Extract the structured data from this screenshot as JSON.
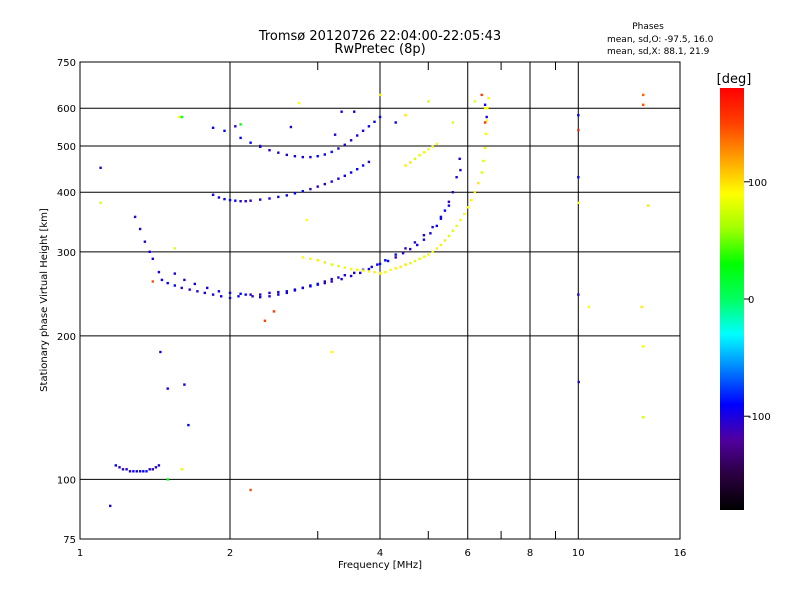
{
  "header": {
    "title": "Tromsø 20120726 22:04:00-22:05:43",
    "subtitle": "RwPretec (8p)"
  },
  "stats": {
    "heading": "Phases",
    "line_o": "mean, sd,O: -97.5, 16.0",
    "line_x": "mean, sd,X:  88.1, 21.9"
  },
  "colorbar": {
    "unit": "[deg]",
    "tick_labels": [
      "100",
      "0",
      "-100"
    ],
    "tick_values": [
      100,
      0,
      -100
    ],
    "range": [
      -180,
      180
    ],
    "colors": [
      "#000000",
      "#2a0040",
      "#5000a0",
      "#0000ff",
      "#0080ff",
      "#00ffff",
      "#00ff60",
      "#00ff00",
      "#a0ff00",
      "#ffff00",
      "#ffa000",
      "#ff4000",
      "#ff0000"
    ]
  },
  "chart_data": {
    "type": "scatter",
    "xlabel": "Frequency [MHz]",
    "ylabel": "Stationary phase Virtual Height [km]",
    "xscale": "log",
    "yscale": "log",
    "xlim": [
      1,
      16
    ],
    "ylim": [
      75,
      750
    ],
    "grid": true,
    "x_ticks": [
      1,
      2,
      4,
      6,
      8,
      10,
      16
    ],
    "x_tick_labels": [
      "1",
      "2",
      "4",
      "6",
      "8",
      "10",
      "16"
    ],
    "y_ticks": [
      75,
      100,
      200,
      300,
      400,
      500,
      600,
      750
    ],
    "y_tick_labels": [
      "75",
      "100",
      "200",
      "300",
      "400",
      "500",
      "600",
      "750"
    ],
    "x_minor_ticks": [
      3,
      5,
      7,
      9
    ],
    "series": [
      {
        "color_value": -97.5,
        "x": [
          1.29,
          1.32,
          1.35,
          1.38,
          1.4,
          1.44,
          1.46,
          1.5,
          1.55,
          1.6,
          1.66,
          1.72,
          1.78,
          1.85,
          1.92,
          2.0,
          2.08,
          2.15,
          2.22,
          2.3,
          2.4,
          2.5,
          2.6,
          2.7,
          2.8,
          2.9,
          3.0,
          3.1,
          3.2,
          3.3,
          3.4,
          3.55,
          3.7,
          3.85,
          4.0,
          4.15,
          4.3,
          4.45,
          4.6,
          4.75,
          4.9,
          5.05,
          5.2,
          5.3,
          5.4,
          5.5,
          5.6,
          5.7,
          5.78
        ],
        "y": [
          355,
          335,
          315,
          300,
          290,
          272,
          262,
          258,
          255,
          252,
          250,
          248,
          246,
          244,
          242,
          240,
          242,
          244,
          242,
          241,
          242,
          244,
          246,
          249,
          252,
          255,
          257,
          260,
          263,
          265,
          268,
          271,
          275,
          279,
          283,
          287,
          292,
          298,
          304,
          310,
          318,
          328,
          340,
          352,
          366,
          382,
          400,
          430,
          470
        ]
      },
      {
        "color_value": -97.5,
        "x": [
          1.55,
          1.62,
          1.7,
          1.8,
          1.9,
          2.0,
          2.1,
          2.2,
          2.3,
          2.4,
          2.5,
          2.6,
          2.7,
          2.8,
          2.9,
          3.0,
          3.1,
          3.2,
          3.35,
          3.5,
          3.65,
          3.8,
          3.95,
          4.1,
          4.3,
          4.5,
          4.7,
          4.9,
          5.1,
          5.3,
          5.5
        ],
        "y": [
          270,
          262,
          257,
          252,
          248,
          246,
          245,
          244,
          244,
          246,
          247,
          248,
          250,
          252,
          254,
          256,
          258,
          260,
          263,
          267,
          271,
          276,
          282,
          288,
          296,
          305,
          314,
          325,
          338,
          355,
          375
        ]
      },
      {
        "color_value": -97.5,
        "x": [
          1.85,
          1.9,
          1.95,
          2.0,
          2.05,
          2.1,
          2.15,
          2.2,
          2.3,
          2.4,
          2.5,
          2.6,
          2.7,
          2.8,
          2.9,
          3.0,
          3.1,
          3.2,
          3.3,
          3.4,
          3.5,
          3.6,
          3.7,
          3.8
        ],
        "y": [
          395,
          390,
          387,
          385,
          384,
          383,
          383,
          384,
          386,
          388,
          391,
          394,
          398,
          402,
          406,
          411,
          416,
          421,
          427,
          433,
          440,
          447,
          455,
          463
        ]
      },
      {
        "color_value": -97.5,
        "x": [
          2.1,
          2.2,
          2.3,
          2.4,
          2.5,
          2.6,
          2.7,
          2.8,
          2.9,
          3.0,
          3.1,
          3.2,
          3.3,
          3.4,
          3.5,
          3.6,
          3.7,
          3.8,
          3.9,
          4.0
        ],
        "y": [
          520,
          508,
          498,
          490,
          484,
          479,
          476,
          474,
          474,
          476,
          480,
          486,
          494,
          503,
          514,
          526,
          538,
          550,
          562,
          575
        ]
      },
      {
        "color_value": -97.5,
        "x": [
          1.18,
          1.2,
          1.22,
          1.24,
          1.26,
          1.28,
          1.3,
          1.32,
          1.34,
          1.36,
          1.38,
          1.4,
          1.42,
          1.44
        ],
        "y": [
          107,
          106,
          105,
          105,
          104,
          104,
          104,
          104,
          104,
          104,
          105,
          105,
          106,
          107
        ]
      },
      {
        "color_value": -97.5,
        "x": [
          1.1,
          1.15,
          1.45,
          1.5,
          1.62,
          1.65,
          1.85,
          1.95,
          2.05,
          2.3,
          2.65,
          3.25,
          3.35,
          3.55,
          4.3,
          10.0,
          10.0,
          10.0,
          10.02,
          5.8,
          6.5,
          6.55
        ],
        "y": [
          450,
          88,
          185,
          155,
          158,
          130,
          546,
          538,
          550,
          500,
          548,
          528,
          590,
          590,
          560,
          580,
          430,
          244,
          160,
          445,
          610,
          575
        ]
      },
      {
        "color_value": 88.1,
        "x": [
          4.0,
          4.1,
          4.2,
          4.3,
          4.4,
          4.5,
          4.6,
          4.7,
          4.8,
          4.9,
          5.0,
          5.1,
          5.2,
          5.3,
          5.4,
          5.5,
          5.6,
          5.7,
          5.8,
          5.9,
          6.0,
          6.1,
          6.2,
          6.3,
          6.4,
          6.45,
          6.5,
          6.52,
          6.55,
          6.57,
          6.6
        ],
        "y": [
          270,
          272,
          275,
          277,
          279,
          282,
          284,
          287,
          290,
          293,
          296,
          300,
          305,
          310,
          317,
          324,
          332,
          340,
          350,
          360,
          372,
          385,
          400,
          418,
          440,
          465,
          495,
          530,
          565,
          600,
          630
        ]
      },
      {
        "color_value": 88.1,
        "x": [
          2.8,
          2.9,
          3.0,
          3.1,
          3.2,
          3.3,
          3.4,
          3.5,
          3.6,
          3.7,
          3.8,
          3.9,
          4.0
        ],
        "y": [
          292,
          290,
          288,
          285,
          282,
          280,
          278,
          276,
          275,
          274,
          273,
          272,
          271
        ]
      },
      {
        "color_value": 88.1,
        "x": [
          4.5,
          4.6,
          4.7,
          4.8,
          4.9,
          5.0,
          5.1,
          5.2
        ],
        "y": [
          455,
          462,
          470,
          478,
          485,
          492,
          498,
          505
        ]
      },
      {
        "color_value": 88.1,
        "x": [
          1.1,
          1.55,
          1.6,
          1.58,
          2.75,
          2.85,
          3.2,
          4.0,
          4.5,
          5.0,
          5.6,
          6.2,
          6.5,
          10.0,
          10.5,
          13.5,
          13.4,
          13.8,
          13.5
        ],
        "y": [
          380,
          305,
          105,
          575,
          615,
          350,
          185,
          640,
          580,
          620,
          560,
          620,
          600,
          380,
          230,
          190,
          230,
          375,
          135
        ]
      },
      {
        "color_value": 150,
        "x": [
          1.4,
          2.2,
          2.35,
          2.45,
          6.4,
          6.5,
          10.0,
          13.5,
          13.5
        ],
        "y": [
          260,
          95,
          215,
          225,
          640,
          560,
          540,
          640,
          610
        ]
      },
      {
        "color_value": 20,
        "x": [
          1.6,
          1.5,
          2.1
        ],
        "y": [
          575,
          100,
          555
        ]
      }
    ]
  }
}
